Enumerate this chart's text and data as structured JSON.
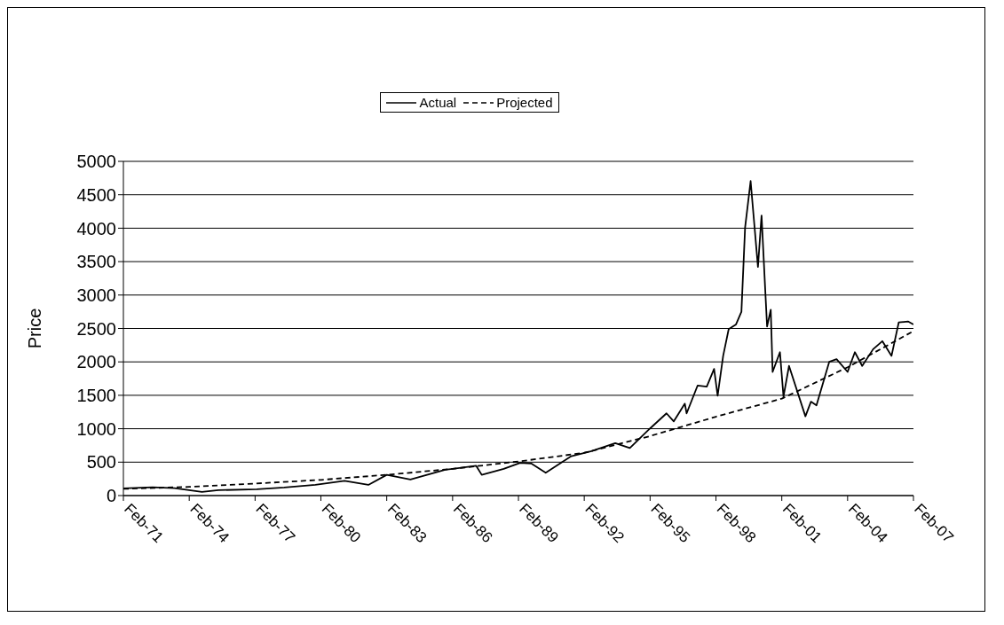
{
  "chart_data": {
    "type": "line",
    "ylabel": "Price",
    "ylim": [
      0,
      5000
    ],
    "yticks": [
      0,
      500,
      1000,
      1500,
      2000,
      2500,
      3000,
      3500,
      4000,
      4500,
      5000
    ],
    "xlim": [
      "1971-02",
      "2007-02"
    ],
    "xticks": [
      {
        "value": "1971-02",
        "label": "Feb-71"
      },
      {
        "value": "1974-02",
        "label": "Feb-74"
      },
      {
        "value": "1977-02",
        "label": "Feb-77"
      },
      {
        "value": "1980-02",
        "label": "Feb-80"
      },
      {
        "value": "1983-02",
        "label": "Feb-83"
      },
      {
        "value": "1986-02",
        "label": "Feb-86"
      },
      {
        "value": "1989-02",
        "label": "Feb-89"
      },
      {
        "value": "1992-02",
        "label": "Feb-92"
      },
      {
        "value": "1995-02",
        "label": "Feb-95"
      },
      {
        "value": "1998-02",
        "label": "Feb-98"
      },
      {
        "value": "2001-02",
        "label": "Feb-01"
      },
      {
        "value": "2004-02",
        "label": "Feb-04"
      },
      {
        "value": "2007-02",
        "label": "Feb-07"
      }
    ],
    "grid": "y",
    "legend": "top",
    "marker": "none",
    "series": [
      {
        "name": "Actual",
        "color": "#000000",
        "line_style": "solid",
        "x": [
          "1971-02",
          "1972-06",
          "1973-06",
          "1974-09",
          "1975-06",
          "1977-03",
          "1978-06",
          "1979-11",
          "1981-03",
          "1982-04",
          "1983-02",
          "1984-03",
          "1985-10",
          "1987-03",
          "1987-06",
          "1988-06",
          "1989-03",
          "1989-09",
          "1990-05",
          "1991-07",
          "1992-06",
          "1993-07",
          "1994-03",
          "1995-02",
          "1995-11",
          "1996-03",
          "1996-09",
          "1996-10",
          "1997-04",
          "1997-09",
          "1998-01",
          "1998-03",
          "1998-06",
          "1998-09",
          "1999-01",
          "1999-04",
          "1999-06",
          "1999-09",
          "2000-01",
          "2000-03",
          "2000-05",
          "2000-06",
          "2000-08",
          "2000-09",
          "2001-01",
          "2001-03",
          "2001-06",
          "2002-03",
          "2002-06",
          "2002-09",
          "2003-04",
          "2003-08",
          "2004-02",
          "2004-06",
          "2004-10",
          "2005-04",
          "2005-09",
          "2006-02",
          "2006-06",
          "2006-11",
          "2007-02"
        ],
        "values": [
          108,
          125,
          110,
          55,
          80,
          95,
          120,
          160,
          220,
          160,
          310,
          240,
          385,
          445,
          310,
          400,
          490,
          480,
          340,
          590,
          665,
          785,
          710,
          1005,
          1230,
          1110,
          1375,
          1230,
          1645,
          1630,
          1895,
          1495,
          2090,
          2490,
          2560,
          2750,
          4010,
          4705,
          3420,
          4190,
          3080,
          2530,
          2780,
          1850,
          2145,
          1480,
          1940,
          1185,
          1405,
          1350,
          2000,
          2040,
          1850,
          2145,
          1940,
          2190,
          2310,
          2090,
          2590,
          2605,
          2560
        ]
      },
      {
        "name": "Projected",
        "color": "#000000",
        "line_style": "dashed",
        "x": [
          "1971-02",
          "1974-02",
          "1977-02",
          "1980-02",
          "1983-02",
          "1986-02",
          "1989-02",
          "1992-02",
          "1995-02",
          "1998-02",
          "2001-02",
          "2004-02",
          "2007-02"
        ],
        "values": [
          100,
          130,
          180,
          235,
          310,
          400,
          510,
          640,
          890,
          1180,
          1450,
          1920,
          2460
        ]
      }
    ]
  }
}
